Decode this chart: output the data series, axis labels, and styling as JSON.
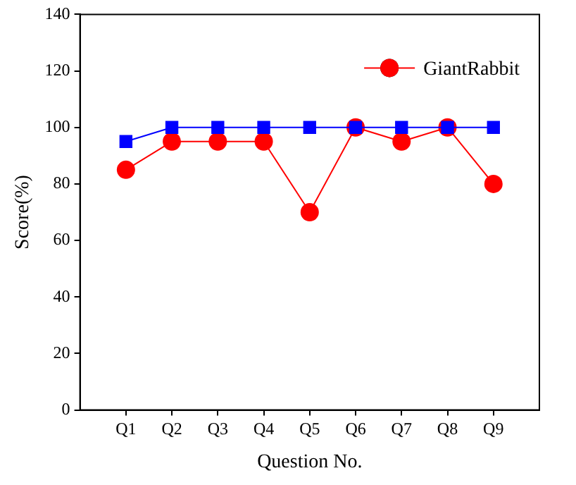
{
  "chart_data": {
    "type": "line",
    "xlabel": "Question No.",
    "ylabel": "Score(%)",
    "categories": [
      "Q1",
      "Q2",
      "Q3",
      "Q4",
      "Q5",
      "Q6",
      "Q7",
      "Q8",
      "Q9"
    ],
    "series": [
      {
        "color": "#0000ff",
        "marker": "square",
        "values": [
          95,
          100,
          100,
          100,
          100,
          100,
          100,
          100,
          100
        ]
      },
      {
        "name": "GiantRabbit",
        "color": "#ff0000",
        "marker": "circle",
        "values": [
          85,
          95,
          95,
          95,
          70,
          100,
          95,
          100,
          80
        ]
      }
    ],
    "ylim": [
      0,
      140
    ],
    "yticks": [
      0,
      20,
      40,
      60,
      80,
      100,
      120,
      140
    ],
    "legend": "top right",
    "grid": false,
    "line_style": "solid"
  }
}
